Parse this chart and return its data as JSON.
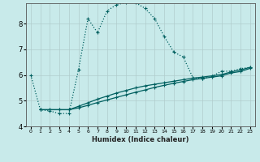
{
  "xlabel": "Humidex (Indice chaleur)",
  "background_color": "#c8eaea",
  "grid_color": "#b0cccc",
  "line_color": "#006060",
  "xlim": [
    -0.5,
    23.5
  ],
  "ylim": [
    4.0,
    8.8
  ],
  "yticks": [
    4,
    5,
    6,
    7,
    8
  ],
  "xtick_labels": [
    "0",
    "1",
    "2",
    "3",
    "4",
    "5",
    "6",
    "7",
    "8",
    "9",
    "10",
    "11",
    "12",
    "13",
    "14",
    "15",
    "16",
    "17",
    "18",
    "19",
    "20",
    "21",
    "22",
    "23"
  ],
  "curve1_x": [
    0,
    1,
    2,
    3,
    4,
    5,
    6,
    7,
    8,
    9,
    10,
    11,
    12,
    13,
    14,
    15,
    16,
    17,
    18,
    19,
    20,
    21,
    22,
    23
  ],
  "curve1_y": [
    6.0,
    4.65,
    4.6,
    4.5,
    4.5,
    6.2,
    8.2,
    7.65,
    8.5,
    8.75,
    8.82,
    8.82,
    8.6,
    8.2,
    7.5,
    6.9,
    6.7,
    5.9,
    5.85,
    5.95,
    6.15,
    6.15,
    6.25,
    6.3
  ],
  "curve2_x": [
    1,
    2,
    3,
    4,
    5,
    6,
    7,
    8,
    9,
    10,
    11,
    12,
    13,
    14,
    15,
    16,
    17,
    18,
    19,
    20,
    21,
    22,
    23
  ],
  "curve2_y": [
    4.65,
    4.65,
    4.65,
    4.65,
    4.72,
    4.82,
    4.93,
    5.03,
    5.13,
    5.23,
    5.33,
    5.42,
    5.52,
    5.6,
    5.68,
    5.75,
    5.82,
    5.87,
    5.92,
    5.97,
    6.08,
    6.14,
    6.26
  ],
  "curve3_x": [
    1,
    2,
    3,
    4,
    5,
    6,
    7,
    8,
    9,
    10,
    11,
    12,
    13,
    14,
    15,
    16,
    17,
    18,
    19,
    20,
    21,
    22,
    23
  ],
  "curve3_y": [
    4.65,
    4.65,
    4.65,
    4.65,
    4.78,
    4.92,
    5.06,
    5.18,
    5.3,
    5.4,
    5.5,
    5.58,
    5.64,
    5.7,
    5.76,
    5.82,
    5.88,
    5.92,
    5.97,
    6.02,
    6.12,
    6.2,
    6.3
  ]
}
